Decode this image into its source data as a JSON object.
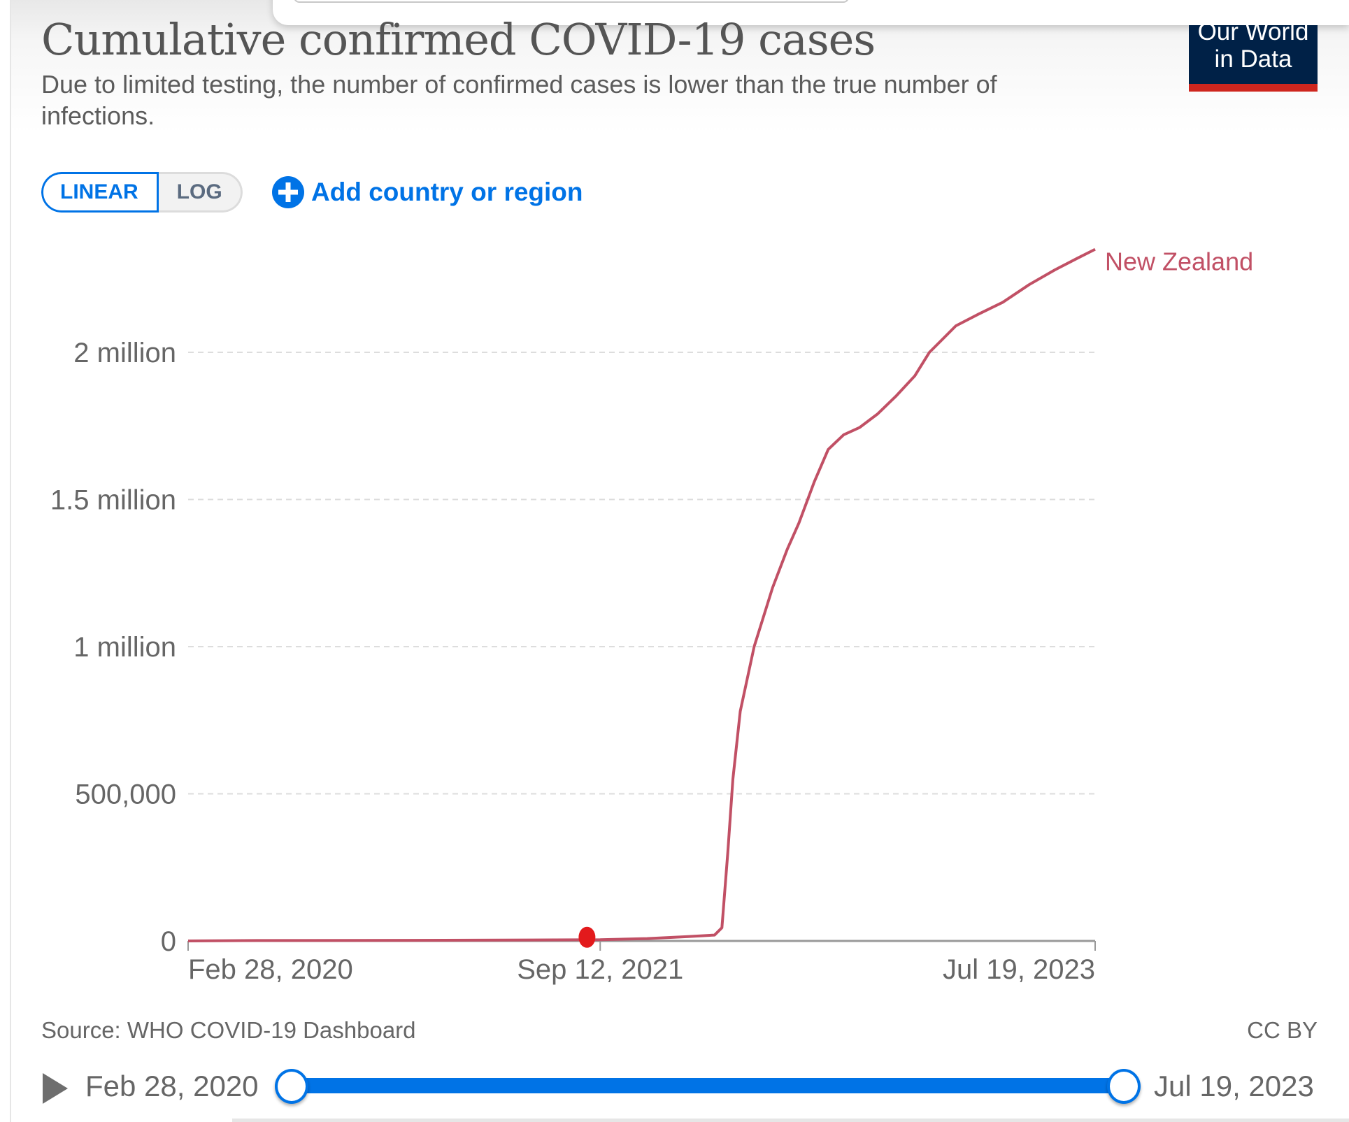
{
  "header": {
    "title": "Cumulative confirmed COVID-19 cases",
    "subtitle": "Due to limited testing, the number of confirmed cases is lower than the true number of infections.",
    "logo_line1": "Our World",
    "logo_line2": "in Data"
  },
  "controls": {
    "scale_options": [
      {
        "label": "LINEAR",
        "active": true
      },
      {
        "label": "LOG",
        "active": false
      }
    ],
    "add_country_label": "Add country or region",
    "add_country_icon": "plus-circle-icon"
  },
  "colors": {
    "series": "#c15065",
    "accent": "#0073e6",
    "logo_bg": "#002147",
    "logo_stripe": "#ce261e",
    "marker": "#e31a1c"
  },
  "chart_data": {
    "type": "line",
    "title": "Cumulative confirmed COVID-19 cases",
    "subtitle": "Due to limited testing, the number of confirmed cases is lower than the true number of infections.",
    "xlabel": "",
    "ylabel": "",
    "x_domain": [
      "2020-02-28",
      "2023-07-19"
    ],
    "ylim": [
      0,
      2000000
    ],
    "yticks": [
      {
        "value": 0,
        "label": "0"
      },
      {
        "value": 500000,
        "label": "500,000"
      },
      {
        "value": 1000000,
        "label": "1 million"
      },
      {
        "value": 1500000,
        "label": "1.5 million"
      },
      {
        "value": 2000000,
        "label": "2 million"
      }
    ],
    "xticks": [
      {
        "date": "2020-02-28",
        "label": "Feb 28, 2020"
      },
      {
        "date": "2021-09-12",
        "label": "Sep 12, 2021"
      },
      {
        "date": "2023-07-19",
        "label": "Jul 19, 2023"
      }
    ],
    "grid": true,
    "legend": "inline-end-label",
    "series": [
      {
        "name": "New Zealand",
        "points": [
          {
            "date": "2020-02-28",
            "value": 0
          },
          {
            "date": "2020-06-01",
            "value": 1500
          },
          {
            "date": "2021-01-01",
            "value": 2200
          },
          {
            "date": "2021-09-12",
            "value": 4000
          },
          {
            "date": "2021-11-15",
            "value": 8000
          },
          {
            "date": "2022-01-10",
            "value": 15000
          },
          {
            "date": "2022-02-15",
            "value": 20000
          },
          {
            "date": "2022-02-25",
            "value": 45000
          },
          {
            "date": "2022-03-05",
            "value": 300000
          },
          {
            "date": "2022-03-12",
            "value": 550000
          },
          {
            "date": "2022-03-22",
            "value": 780000
          },
          {
            "date": "2022-04-10",
            "value": 1000000
          },
          {
            "date": "2022-05-05",
            "value": 1200000
          },
          {
            "date": "2022-05-25",
            "value": 1330000
          },
          {
            "date": "2022-06-10",
            "value": 1420000
          },
          {
            "date": "2022-07-01",
            "value": 1560000
          },
          {
            "date": "2022-07-20",
            "value": 1670000
          },
          {
            "date": "2022-08-10",
            "value": 1720000
          },
          {
            "date": "2022-09-01",
            "value": 1745000
          },
          {
            "date": "2022-09-25",
            "value": 1790000
          },
          {
            "date": "2022-10-20",
            "value": 1850000
          },
          {
            "date": "2022-11-15",
            "value": 1920000
          },
          {
            "date": "2022-12-05",
            "value": 2000000
          },
          {
            "date": "2022-12-25",
            "value": 2050000
          },
          {
            "date": "2023-01-10",
            "value": 2090000
          },
          {
            "date": "2023-02-10",
            "value": 2130000
          },
          {
            "date": "2023-03-15",
            "value": 2170000
          },
          {
            "date": "2023-04-20",
            "value": 2230000
          },
          {
            "date": "2023-05-25",
            "value": 2280000
          },
          {
            "date": "2023-06-25",
            "value": 2320000
          },
          {
            "date": "2023-07-19",
            "value": 2350000
          }
        ]
      }
    ],
    "annotations": [
      {
        "type": "marker",
        "date": "2021-08-25",
        "value": 3000,
        "color": "#e31a1c"
      }
    ]
  },
  "footer": {
    "source": "Source: WHO COVID-19 Dashboard",
    "license": "CC BY"
  },
  "timeline": {
    "play_icon": "play-icon",
    "start_label": "Feb 28, 2020",
    "end_label": "Jul 19, 2023",
    "start_fraction": 0,
    "end_fraction": 1
  }
}
